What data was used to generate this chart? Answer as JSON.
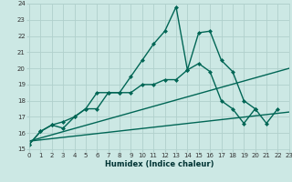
{
  "xlabel": "Humidex (Indice chaleur)",
  "bg_color": "#cce8e4",
  "grid_color": "#b0d0cc",
  "line_color": "#006655",
  "xlim": [
    0,
    23
  ],
  "ylim": [
    15,
    24
  ],
  "yticks": [
    15,
    16,
    17,
    18,
    19,
    20,
    21,
    22,
    23,
    24
  ],
  "xticks": [
    0,
    1,
    2,
    3,
    4,
    5,
    6,
    7,
    8,
    9,
    10,
    11,
    12,
    13,
    14,
    15,
    16,
    17,
    18,
    19,
    20,
    21,
    22,
    23
  ],
  "lines": [
    {
      "x": [
        0,
        1,
        2,
        3,
        4,
        5,
        6,
        7,
        8,
        9,
        10,
        11,
        12,
        13,
        14,
        15,
        16,
        17,
        18,
        19,
        20,
        21,
        22,
        23
      ],
      "y": [
        15.3,
        16.1,
        16.5,
        16.3,
        17.0,
        17.5,
        18.5,
        18.5,
        18.5,
        19.5,
        20.5,
        21.5,
        22.3,
        23.8,
        19.9,
        22.2,
        22.3,
        20.5,
        19.8,
        18.0,
        17.5,
        16.6,
        17.5,
        null
      ],
      "has_marker": true,
      "markersize": 2.5,
      "linewidth": 1.0
    },
    {
      "x": [
        0,
        1,
        2,
        3,
        4,
        5,
        6,
        7,
        8,
        9,
        10,
        11,
        12,
        13,
        14,
        15,
        16,
        17,
        18,
        19,
        20,
        21,
        22,
        23
      ],
      "y": [
        15.3,
        16.1,
        16.5,
        16.7,
        17.0,
        17.5,
        17.5,
        18.5,
        18.5,
        18.5,
        19.0,
        19.0,
        19.3,
        19.3,
        19.9,
        20.3,
        19.8,
        18.0,
        17.5,
        16.6,
        17.5,
        null,
        null,
        null
      ],
      "has_marker": true,
      "markersize": 2.5,
      "linewidth": 1.0
    },
    {
      "x": [
        0,
        23
      ],
      "y": [
        15.5,
        20.0
      ],
      "has_marker": false,
      "linewidth": 1.0
    },
    {
      "x": [
        0,
        23
      ],
      "y": [
        15.5,
        17.3
      ],
      "has_marker": false,
      "linewidth": 1.0
    }
  ]
}
